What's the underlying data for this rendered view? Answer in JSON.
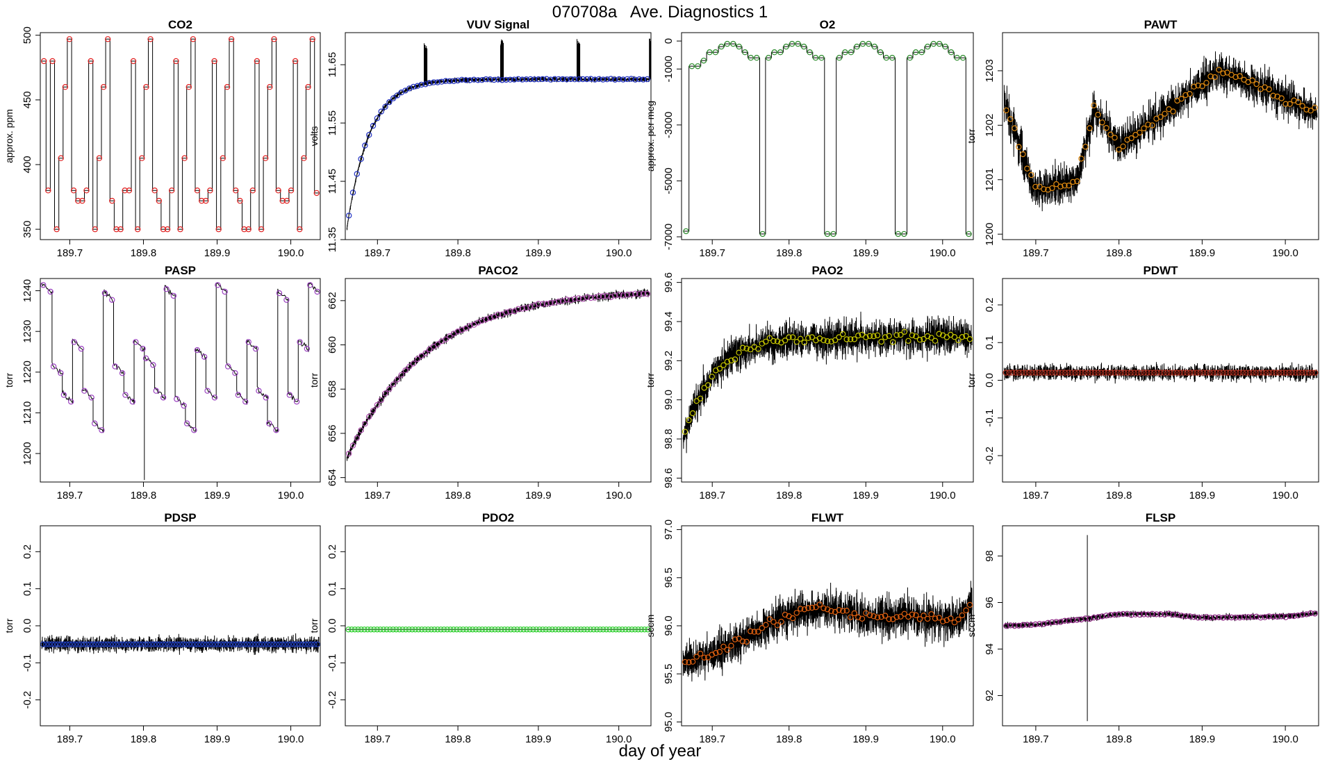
{
  "figure": {
    "title": "070708a   Ave. Diagnostics 1",
    "xlabel": "day of year"
  },
  "chart_data": [
    {
      "type": "line",
      "title": "CO2",
      "ylabel": "approx. ppm",
      "xlim": [
        189.66,
        190.04
      ],
      "ylim": [
        342,
        502
      ],
      "xticks": [
        189.7,
        189.8,
        189.9,
        190.0
      ],
      "xtick_labels": [
        "189.7",
        "189.8",
        "189.9",
        "190.0"
      ],
      "yticks": [
        350,
        400,
        450,
        500
      ],
      "ytick_labels": [
        "350",
        "400",
        "450",
        "500"
      ],
      "marker_color": "#e02020",
      "mode": "square",
      "levels": [
        480,
        380,
        480,
        350,
        405,
        460,
        497,
        380,
        372,
        372,
        380,
        480,
        350,
        405,
        460,
        497,
        372,
        350,
        350,
        380,
        380,
        480,
        350,
        405,
        460,
        497,
        380,
        372,
        350,
        350,
        380,
        480,
        350,
        405,
        460,
        497,
        380,
        372,
        372,
        380,
        480,
        350,
        405,
        460,
        497,
        380,
        372,
        350,
        350,
        380,
        480,
        350,
        405,
        460,
        497,
        380,
        372,
        372,
        380,
        480,
        350,
        405,
        460,
        497,
        378
      ],
      "noise": 0.5,
      "marker_every": 1
    },
    {
      "type": "line",
      "title": "VUV Signal",
      "ylabel": "volts",
      "xlim": [
        189.66,
        190.04
      ],
      "ylim": [
        11.35,
        11.705
      ],
      "xticks": [
        189.7,
        189.8,
        189.9,
        190.0
      ],
      "xtick_labels": [
        "189.7",
        "189.8",
        "189.9",
        "190.0"
      ],
      "yticks": [
        11.35,
        11.45,
        11.55,
        11.65
      ],
      "ytick_labels": [
        "11.35",
        "11.45",
        "11.55",
        "11.65"
      ],
      "marker_color": "#2030c0",
      "mode": "saturate",
      "start": 11.37,
      "end": 11.625,
      "tau": 0.028,
      "drift": [
        [
          189.66,
          11.37
        ],
        [
          189.76,
          11.622
        ],
        [
          189.85,
          11.633
        ],
        [
          189.95,
          11.625
        ],
        [
          190.04,
          11.62
        ]
      ],
      "noise": 0.004,
      "spikes": [
        189.76,
        189.855,
        189.95,
        190.04
      ],
      "spike_height": 0.07,
      "marker_every": 3
    },
    {
      "type": "line",
      "title": "O2",
      "ylabel": "approx. per meg",
      "xlim": [
        189.66,
        190.04
      ],
      "ylim": [
        -7100,
        300
      ],
      "xticks": [
        189.7,
        189.8,
        189.9,
        190.0
      ],
      "xtick_labels": [
        "189.7",
        "189.8",
        "189.9",
        "190.0"
      ],
      "yticks": [
        -7000,
        -5000,
        -3000,
        -1000,
        0
      ],
      "ytick_labels": [
        "-7000",
        "-5000",
        "-3000",
        "-1000",
        "0"
      ],
      "marker_color": "#2a8a2a",
      "mode": "square",
      "levels": [
        -6800,
        -900,
        -900,
        -700,
        -400,
        -400,
        -200,
        -100,
        -100,
        -200,
        -400,
        -600,
        -600,
        -6900,
        -600,
        -400,
        -400,
        -200,
        -100,
        -100,
        -200,
        -400,
        -600,
        -600,
        -6900,
        -6900,
        -600,
        -400,
        -400,
        -200,
        -100,
        -100,
        -200,
        -400,
        -600,
        -600,
        -6900,
        -6900,
        -600,
        -400,
        -400,
        -200,
        -100,
        -100,
        -200,
        -400,
        -600,
        -600,
        -6900
      ],
      "noise": 10,
      "marker_every": 1
    },
    {
      "type": "line",
      "title": "PAWT",
      "ylabel": "torr",
      "xlim": [
        189.66,
        190.04
      ],
      "ylim": [
        1199.9,
        1203.7
      ],
      "xticks": [
        189.7,
        189.8,
        189.9,
        190.0
      ],
      "xtick_labels": [
        "189.7",
        "189.8",
        "189.9",
        "190.0"
      ],
      "yticks": [
        1200,
        1201,
        1202,
        1203
      ],
      "ytick_labels": [
        "1200",
        "1201",
        "1202",
        "1203"
      ],
      "marker_color": "#e08a10",
      "mode": "drift",
      "drift": [
        [
          189.66,
          1202.5
        ],
        [
          189.7,
          1200.8
        ],
        [
          189.75,
          1201.0
        ],
        [
          189.77,
          1202.3
        ],
        [
          189.8,
          1201.6
        ],
        [
          189.86,
          1202.3
        ],
        [
          189.92,
          1203.0
        ],
        [
          189.97,
          1202.7
        ],
        [
          190.04,
          1202.2
        ]
      ],
      "noise": 0.35,
      "marker_every": 2
    },
    {
      "type": "line",
      "title": "PASP",
      "ylabel": "torr",
      "xlim": [
        189.66,
        190.04
      ],
      "ylim": [
        1193,
        1243
      ],
      "xticks": [
        189.7,
        189.8,
        189.9,
        190.0
      ],
      "xtick_labels": [
        "189.7",
        "189.8",
        "189.9",
        "190.0"
      ],
      "yticks": [
        1200,
        1210,
        1220,
        1230,
        1240
      ],
      "ytick_labels": [
        "1200",
        "1210",
        "1220",
        "1230",
        "1240"
      ],
      "marker_color": "#9a40c0",
      "mode": "sawtooth",
      "seg_start": [
        1242,
        1222,
        1215,
        1228,
        1216,
        1208,
        1240,
        1222,
        1215,
        1228,
        1224,
        1216,
        1241,
        1214,
        1208,
        1226,
        1216,
        1242,
        1222,
        1215,
        1228,
        1216,
        1208,
        1240,
        1215,
        1228,
        1242
      ],
      "seg_drop": 2.5,
      "noise": 0.3,
      "marker_every": 1
    },
    {
      "type": "line",
      "title": "PACO2",
      "ylabel": "torr",
      "xlim": [
        189.66,
        190.04
      ],
      "ylim": [
        653.8,
        663.0
      ],
      "xticks": [
        189.7,
        189.8,
        189.9,
        190.0
      ],
      "xtick_labels": [
        "189.7",
        "189.8",
        "189.9",
        "190.0"
      ],
      "yticks": [
        654,
        656,
        658,
        660,
        662
      ],
      "ytick_labels": [
        "654",
        "656",
        "658",
        "660",
        "662"
      ],
      "marker_color": "#b050b0",
      "mode": "saturate",
      "start": 654.9,
      "end": 662.5,
      "tau": 0.1,
      "noise": 0.18,
      "marker_every": 2
    },
    {
      "type": "line",
      "title": "PAO2",
      "ylabel": "torr",
      "xlim": [
        189.66,
        190.04
      ],
      "ylim": [
        98.58,
        99.62
      ],
      "xticks": [
        189.7,
        189.8,
        189.9,
        190.0
      ],
      "xtick_labels": [
        "189.7",
        "189.8",
        "189.9",
        "190.0"
      ],
      "yticks": [
        98.6,
        98.8,
        99.0,
        99.2,
        99.4,
        99.6
      ],
      "ytick_labels": [
        "98.6",
        "98.8",
        "99.0",
        "99.2",
        "99.4",
        "99.6"
      ],
      "marker_color": "#c8c800",
      "mode": "saturate",
      "start": 98.8,
      "end": 99.32,
      "tau": 0.04,
      "noise": 0.09,
      "marker_every": 2
    },
    {
      "type": "line",
      "title": "PDWT",
      "ylabel": "torr",
      "xlim": [
        189.66,
        190.04
      ],
      "ylim": [
        -0.27,
        0.27
      ],
      "xticks": [
        189.7,
        189.8,
        189.9,
        190.0
      ],
      "xtick_labels": [
        "189.7",
        "189.8",
        "189.9",
        "190.0"
      ],
      "yticks": [
        -0.2,
        -0.1,
        0.0,
        0.1,
        0.2
      ],
      "ytick_labels": [
        "-0.2",
        "-0.1",
        "0.0",
        "0.1",
        "0.2"
      ],
      "marker_color": "#b03020",
      "mode": "flat",
      "level": 0.02,
      "noise": 0.02,
      "marker_every": 1
    },
    {
      "type": "line",
      "title": "PDSP",
      "ylabel": "torr",
      "xlim": [
        189.66,
        190.04
      ],
      "ylim": [
        -0.27,
        0.27
      ],
      "xticks": [
        189.7,
        189.8,
        189.9,
        190.0
      ],
      "xtick_labels": [
        "189.7",
        "189.8",
        "189.9",
        "190.0"
      ],
      "yticks": [
        -0.2,
        -0.1,
        0.0,
        0.1,
        0.2
      ],
      "ytick_labels": [
        "-0.2",
        "-0.1",
        "0.0",
        "0.1",
        "0.2"
      ],
      "marker_color": "#2040c0",
      "mode": "flat",
      "level": -0.05,
      "noise": 0.02,
      "marker_every": 1
    },
    {
      "type": "line",
      "title": "PDO2",
      "ylabel": "torr",
      "xlim": [
        189.66,
        190.04
      ],
      "ylim": [
        -0.27,
        0.27
      ],
      "xticks": [
        189.7,
        189.8,
        189.9,
        190.0
      ],
      "xtick_labels": [
        "189.7",
        "189.8",
        "189.9",
        "190.0"
      ],
      "yticks": [
        -0.2,
        -0.1,
        0.0,
        0.1,
        0.2
      ],
      "ytick_labels": [
        "-0.2",
        "-0.1",
        "0.0",
        "0.1",
        "0.2"
      ],
      "marker_color": "#30d030",
      "mode": "flat",
      "level": -0.01,
      "noise": 0,
      "marker_every": 1
    },
    {
      "type": "line",
      "title": "FLWT",
      "ylabel": "sccm",
      "xlim": [
        189.66,
        190.04
      ],
      "ylim": [
        94.96,
        97.04
      ],
      "xticks": [
        189.7,
        189.8,
        189.9,
        190.0
      ],
      "xtick_labels": [
        "189.7",
        "189.8",
        "189.9",
        "190.0"
      ],
      "yticks": [
        95.0,
        95.5,
        96.0,
        96.5,
        97.0
      ],
      "ytick_labels": [
        "95.0",
        "95.5",
        "96.0",
        "96.5",
        "97.0"
      ],
      "marker_color": "#e06010",
      "mode": "drift",
      "drift": [
        [
          189.66,
          95.62
        ],
        [
          189.7,
          95.7
        ],
        [
          189.76,
          95.95
        ],
        [
          189.8,
          96.12
        ],
        [
          189.85,
          96.18
        ],
        [
          189.9,
          96.08
        ],
        [
          189.96,
          96.1
        ],
        [
          190.02,
          96.05
        ],
        [
          190.04,
          96.28
        ]
      ],
      "noise": 0.2,
      "marker_every": 2
    },
    {
      "type": "line",
      "title": "FLSP",
      "ylabel": "sccm",
      "xlim": [
        189.66,
        190.04
      ],
      "ylim": [
        90.7,
        99.3
      ],
      "xticks": [
        189.7,
        189.8,
        189.9,
        190.0
      ],
      "xtick_labels": [
        "189.7",
        "189.8",
        "189.9",
        "190.0"
      ],
      "yticks": [
        92,
        94,
        96,
        98
      ],
      "ytick_labels": [
        "92",
        "94",
        "96",
        "98"
      ],
      "marker_color": "#8a2080",
      "mode": "drift",
      "drift": [
        [
          189.66,
          95.0
        ],
        [
          189.7,
          95.05
        ],
        [
          189.76,
          95.3
        ],
        [
          189.8,
          95.5
        ],
        [
          189.86,
          95.5
        ],
        [
          189.9,
          95.35
        ],
        [
          190.0,
          95.4
        ],
        [
          190.04,
          95.55
        ]
      ],
      "noise": 0.12,
      "spike_at": 189.762,
      "spike_range": [
        90.9,
        98.9
      ],
      "marker_every": 1
    }
  ]
}
